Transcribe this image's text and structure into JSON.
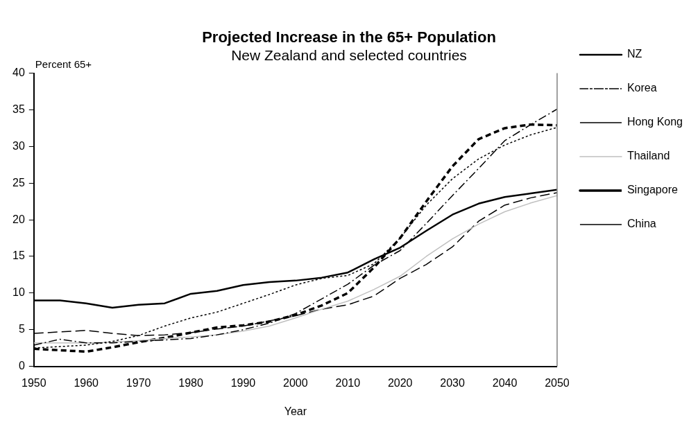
{
  "chart_data": {
    "type": "line",
    "title": "Projected Increase in the 65+ Population",
    "subtitle": "New Zealand and selected countries",
    "xlabel": "Year",
    "ylabel": "Percent 65+",
    "x": [
      1950,
      1955,
      1960,
      1965,
      1970,
      1975,
      1980,
      1985,
      1990,
      1995,
      2000,
      2005,
      2010,
      2015,
      2020,
      2025,
      2030,
      2035,
      2040,
      2045,
      2050
    ],
    "xlim": [
      1950,
      2050
    ],
    "xticks": [
      1950,
      1960,
      1970,
      1980,
      1990,
      2000,
      2010,
      2020,
      2030,
      2040,
      2050
    ],
    "ylim": [
      0,
      40
    ],
    "yticks": [
      0,
      5,
      10,
      15,
      20,
      25,
      30,
      35,
      40
    ],
    "grid": false,
    "legend": "right",
    "marker": "none",
    "series": [
      {
        "name": "NZ",
        "color": "#000000",
        "line_style": "solid",
        "values": [
          9.0,
          9.0,
          8.6,
          8.0,
          8.4,
          8.6,
          9.9,
          10.3,
          11.1,
          11.5,
          11.7,
          12.1,
          12.8,
          14.6,
          16.2,
          18.5,
          20.7,
          22.2,
          23.1,
          23.6,
          24.1
        ]
      },
      {
        "name": "Korea",
        "color": "#000000",
        "line_style": "dashdot",
        "values": [
          2.9,
          3.7,
          3.2,
          3.2,
          3.4,
          3.6,
          3.8,
          4.3,
          5.0,
          5.9,
          7.2,
          9.2,
          11.2,
          13.8,
          15.8,
          19.5,
          23.3,
          27.0,
          30.8,
          33.0,
          35.1
        ]
      },
      {
        "name": "Hong Kong",
        "color": "#000000",
        "line_style": "dotted",
        "values": [
          2.5,
          2.7,
          2.9,
          3.4,
          4.2,
          5.5,
          6.6,
          7.4,
          8.6,
          9.8,
          11.1,
          12.0,
          12.4,
          14.0,
          17.5,
          22.0,
          25.6,
          28.3,
          30.2,
          31.6,
          32.6
        ]
      },
      {
        "name": "Thailand",
        "color": "#c0c0c0",
        "line_style": "solid",
        "values": [
          3.2,
          3.2,
          3.2,
          3.3,
          3.5,
          3.8,
          4.0,
          4.3,
          4.8,
          5.5,
          6.6,
          7.8,
          8.9,
          10.5,
          12.3,
          15.0,
          17.4,
          19.4,
          21.1,
          22.3,
          23.3
        ]
      },
      {
        "name": "Singapore",
        "color": "#000000",
        "line_style": "dashed",
        "values": [
          2.4,
          2.2,
          2.0,
          2.6,
          3.3,
          3.9,
          4.6,
          5.3,
          5.6,
          6.1,
          7.0,
          8.3,
          10.0,
          13.5,
          17.5,
          22.5,
          27.3,
          31.0,
          32.5,
          33.0,
          32.9
        ]
      },
      {
        "name": "China",
        "color": "#000000",
        "line_style": "longdash",
        "values": [
          4.5,
          4.7,
          4.9,
          4.5,
          4.2,
          4.3,
          4.6,
          5.1,
          5.5,
          6.2,
          6.9,
          7.8,
          8.4,
          9.6,
          12.0,
          13.9,
          16.3,
          19.8,
          22.0,
          23.0,
          23.7
        ]
      }
    ]
  }
}
